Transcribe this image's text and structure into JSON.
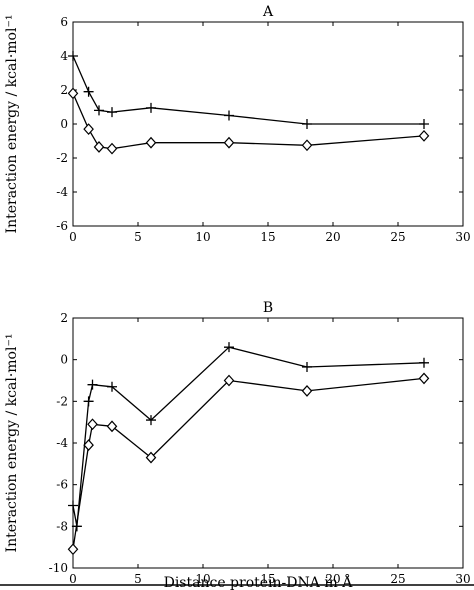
{
  "chart_data": [
    {
      "type": "line",
      "title": "A",
      "xlabel": "",
      "ylabel": "Interaction energy / kcal·mol⁻¹",
      "xlim": [
        0,
        30
      ],
      "ylim": [
        -6,
        6
      ],
      "xticks": [
        0,
        5,
        10,
        15,
        20,
        25,
        30
      ],
      "yticks": [
        -6,
        -4,
        -2,
        0,
        2,
        4,
        6
      ],
      "grid": false,
      "series": [
        {
          "marker": "plus",
          "x": [
            0,
            1.2,
            2,
            3,
            6,
            12,
            18,
            27
          ],
          "y": [
            4.0,
            1.9,
            0.8,
            0.7,
            0.95,
            0.5,
            0.0,
            0.0
          ]
        },
        {
          "marker": "diamond",
          "x": [
            0,
            1.2,
            2,
            3,
            6,
            12,
            18,
            27
          ],
          "y": [
            1.8,
            -0.3,
            -1.35,
            -1.45,
            -1.1,
            -1.1,
            -1.25,
            -0.7
          ]
        }
      ]
    },
    {
      "type": "line",
      "title": "B",
      "xlabel": "Distance protein-DNA in Å",
      "ylabel": "Interaction energy / kcal·mol⁻¹",
      "xlim": [
        0,
        30
      ],
      "ylim": [
        -10,
        2
      ],
      "xticks": [
        0,
        5,
        10,
        15,
        20,
        25,
        30
      ],
      "yticks": [
        -10,
        -8,
        -6,
        -4,
        -2,
        0,
        2
      ],
      "grid": false,
      "series": [
        {
          "marker": "plus",
          "x": [
            0,
            0.3,
            1.2,
            1.5,
            3,
            6,
            12,
            18,
            27
          ],
          "y": [
            -7.0,
            -8.0,
            -2.0,
            -1.2,
            -1.3,
            -2.9,
            0.6,
            -0.35,
            -0.15
          ]
        },
        {
          "marker": "diamond",
          "x": [
            0,
            1.2,
            1.5,
            3,
            6,
            12,
            18,
            27
          ],
          "y": [
            -9.1,
            -4.1,
            -3.1,
            -3.2,
            -4.7,
            -1.0,
            -1.5,
            -0.9
          ]
        }
      ]
    }
  ]
}
